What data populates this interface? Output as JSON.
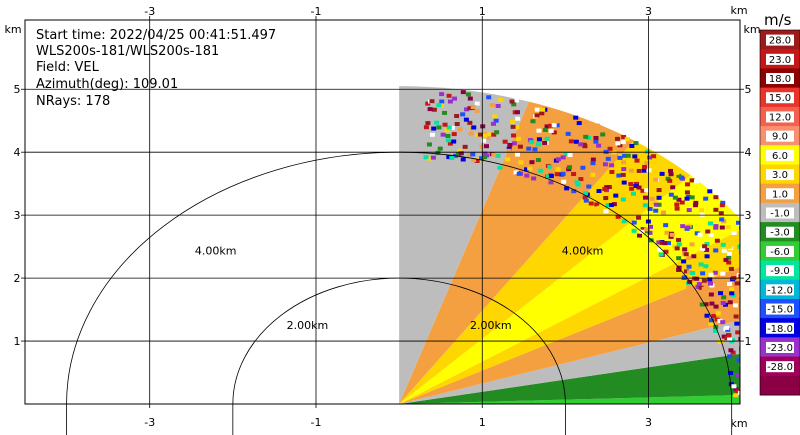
{
  "chart_data": {
    "type": "heatmap",
    "subtype": "radar-rhi-sector",
    "info": {
      "start_time": "Start time: 2022/04/25 00:41:51.497",
      "instrument": "WLS200s-181/WLS200s-181",
      "field": "Field: VEL",
      "azimuth": "Azimuth(deg): 109.01",
      "nrays": "NRays: 178"
    },
    "x_axis": {
      "unit": "km",
      "range": [
        -4.5,
        4.1
      ],
      "ticks": [
        -3,
        -1,
        1,
        3
      ],
      "tick_labels": [
        "-3",
        "-1",
        "1",
        "3"
      ]
    },
    "y_axis": {
      "unit": "km",
      "range": [
        0,
        6.1
      ],
      "ticks": [
        1,
        2,
        3,
        4,
        5
      ],
      "tick_labels": [
        "1",
        "2",
        "3",
        "4",
        "5"
      ]
    },
    "grid": true,
    "range_rings": [
      {
        "radius_km": 2.0,
        "label": "2.00km"
      },
      {
        "radius_km": 4.0,
        "label": "4.00km"
      }
    ],
    "sector": {
      "origin_x_km": 0.0,
      "max_range_km": 5.05,
      "elev_min_deg": 0,
      "elev_max_deg": 90
    },
    "colorbar": {
      "unit": "m/s",
      "levels": [
        "28.0",
        "23.0",
        "18.0",
        "15.0",
        "12.0",
        "9.0",
        "6.0",
        "3.0",
        "1.0",
        "-1.0",
        "-3.0",
        "-6.0",
        "-9.0",
        "-12.0",
        "-15.0",
        "-18.0",
        "-23.0",
        "-28.0"
      ],
      "colors": [
        "#9b1b1b",
        "#c41818",
        "#8b0000",
        "#e8342a",
        "#f46050",
        "#f89070",
        "#ffff00",
        "#ffd700",
        "#f4a040",
        "#bdbdbd",
        "#228b22",
        "#32cd32",
        "#00e5a0",
        "#00b8d8",
        "#1e50ff",
        "#0000e0",
        "#9932cc",
        "#a0005a",
        "#8b0045"
      ]
    },
    "velocity_bands": [
      {
        "label": "-6.0 to -3.0",
        "color": "#32cd32",
        "elev_from": 0,
        "elev_to": 2
      },
      {
        "label": "-3.0 to -1.0",
        "color": "#228b22",
        "elev_from": 2,
        "elev_to": 11
      },
      {
        "label": "-1.0 to 1.0",
        "color": "#bdbdbd",
        "elev_from": 11,
        "elev_to": 18
      },
      {
        "label": "1.0 to 3.0",
        "color": "#f4a040",
        "elev_from": 18,
        "elev_to": 28
      },
      {
        "label": "3.0 to 6.0",
        "color": "#ffd700",
        "elev_from": 28,
        "elev_to": 34
      },
      {
        "label": "6.0 to 9.0",
        "color": "#ffff00",
        "elev_from": 34,
        "elev_to": 46
      },
      {
        "label": "3.0 to 6.0",
        "color": "#ffd700",
        "elev_from": 46,
        "elev_to": 56
      },
      {
        "label": "1.0 to 3.0",
        "color": "#f4a040",
        "elev_from": 56,
        "elev_to": 72
      },
      {
        "label": "-1.0 to 1.0",
        "color": "#bdbdbd",
        "elev_from": 72,
        "elev_to": 90
      }
    ]
  }
}
